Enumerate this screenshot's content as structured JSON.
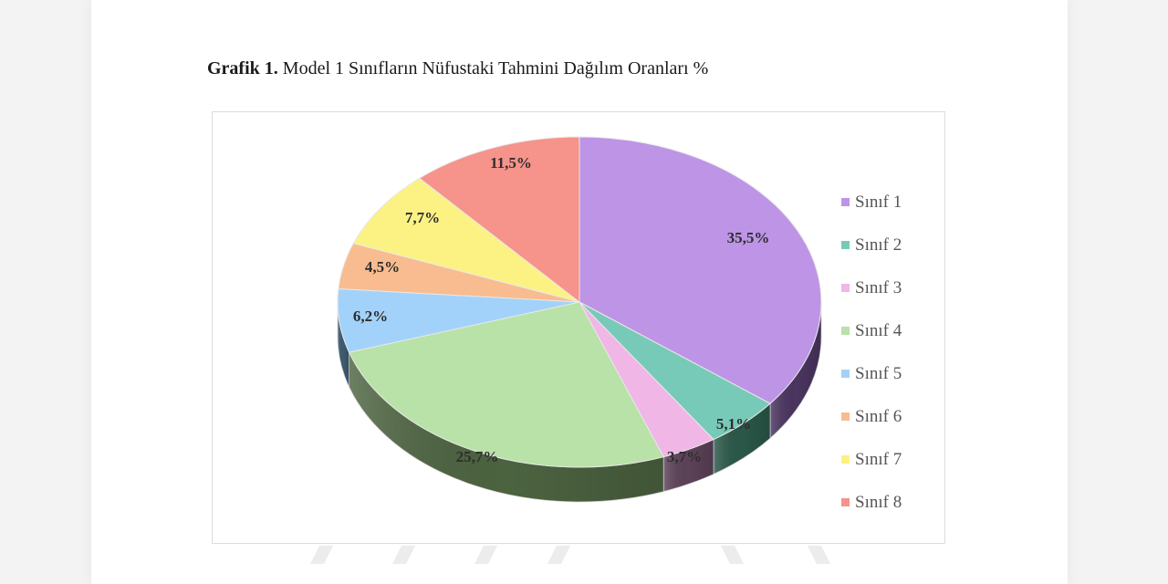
{
  "caption": {
    "label": "Grafik 1.",
    "text": "Model 1 Sınıfların Nüfustaki Tahmini Dağılım Oranları %"
  },
  "chart_data": {
    "type": "pie",
    "title": "Model 1 Sınıfların Nüfustaki Tahmini Dağılım Oranları %",
    "style": "3d",
    "start_angle": "12 o'clock, clockwise",
    "legend_position": "right",
    "categories": [
      "Sınıf 1",
      "Sınıf 2",
      "Sınıf 3",
      "Sınıf 4",
      "Sınıf 5",
      "Sınıf 6",
      "Sınıf 7",
      "Sınıf 8"
    ],
    "values": [
      35.5,
      5.1,
      3.7,
      25.7,
      6.2,
      4.5,
      7.7,
      11.5
    ],
    "labels": [
      "35,5%",
      "5,1%",
      "3,7%",
      "25,7%",
      "6,2%",
      "4,5%",
      "7,7%",
      "11,5%"
    ],
    "colors": [
      "#be94e6",
      "#78cab8",
      "#f0b6e6",
      "#b8e2a8",
      "#a2d2fa",
      "#f8bc90",
      "#fcf284",
      "#f6938a"
    ],
    "side_colors": [
      "#4a3560",
      "#2a5848",
      "#5c4258",
      "#4c6340",
      "#3e5a70",
      "#6a5038",
      "#6a6630",
      "#6a3a36"
    ]
  },
  "legend": {
    "items": [
      {
        "label": "Sınıf 1",
        "color": "#be94e6"
      },
      {
        "label": "Sınıf 2",
        "color": "#78cab8"
      },
      {
        "label": "Sınıf 3",
        "color": "#f0b6e6"
      },
      {
        "label": "Sınıf 4",
        "color": "#b8e2a8"
      },
      {
        "label": "Sınıf 5",
        "color": "#a2d2fa"
      },
      {
        "label": "Sınıf 6",
        "color": "#f8bc90"
      },
      {
        "label": "Sınıf 7",
        "color": "#fcf284"
      },
      {
        "label": "Sınıf 8",
        "color": "#f6938a"
      }
    ]
  }
}
